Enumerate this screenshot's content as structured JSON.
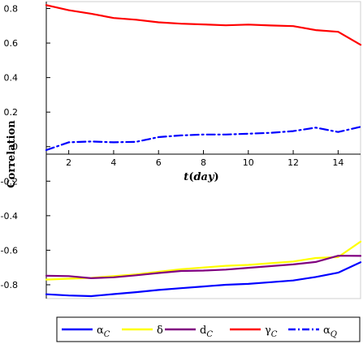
{
  "chart_data": {
    "type": "line",
    "xlabel": "t",
    "xlabel_unit": "day",
    "ylabel": "Correlation",
    "xlim": [
      1,
      15
    ],
    "ylim": [
      -0.88,
      0.84
    ],
    "x_ticks": [
      2,
      4,
      6,
      8,
      10,
      12,
      14
    ],
    "y_ticks": [
      0.8,
      0.6,
      0.4,
      0.2,
      0,
      -0.2,
      -0.4,
      -0.6,
      -0.8
    ],
    "x_tick_labels": [
      "2",
      "4",
      "6",
      "8",
      "10",
      "12",
      "14"
    ],
    "y_tick_labels": [
      "0.8",
      "0.6",
      "0.4",
      "0.2",
      "0",
      "-0.2",
      "-0.4",
      "-0.6",
      "-0.8"
    ],
    "grid": false,
    "legend_position": "bottom",
    "series": [
      {
        "name": "α",
        "sub": "C",
        "color": "#0000ff",
        "dash": "solid",
        "x": [
          1,
          2,
          3,
          4,
          5,
          6,
          7,
          8,
          9,
          10,
          11,
          12,
          13,
          14,
          15
        ],
        "values": [
          -0.855,
          -0.862,
          -0.866,
          -0.854,
          -0.843,
          -0.83,
          -0.82,
          -0.81,
          -0.8,
          -0.795,
          -0.785,
          -0.775,
          -0.755,
          -0.73,
          -0.67
        ]
      },
      {
        "name": "δ",
        "sub": "",
        "color": "#ffff00",
        "dash": "solid",
        "x": [
          1,
          2,
          3,
          4,
          5,
          6,
          7,
          8,
          9,
          10,
          11,
          12,
          13,
          14,
          15
        ],
        "values": [
          -0.77,
          -0.765,
          -0.76,
          -0.75,
          -0.74,
          -0.725,
          -0.71,
          -0.7,
          -0.69,
          -0.685,
          -0.675,
          -0.665,
          -0.645,
          -0.64,
          -0.55
        ]
      },
      {
        "name": "d",
        "sub": "C",
        "color": "#800080",
        "dash": "solid",
        "x": [
          1,
          2,
          3,
          4,
          5,
          6,
          7,
          8,
          9,
          10,
          11,
          12,
          13,
          14,
          15
        ],
        "values": [
          -0.748,
          -0.75,
          -0.762,
          -0.757,
          -0.745,
          -0.732,
          -0.72,
          -0.718,
          -0.712,
          -0.702,
          -0.692,
          -0.682,
          -0.668,
          -0.632,
          -0.633
        ]
      },
      {
        "name": "γ",
        "sub": "C",
        "color": "#ff0000",
        "dash": "solid",
        "x": [
          1,
          2,
          3,
          4,
          5,
          6,
          7,
          8,
          9,
          10,
          11,
          12,
          13,
          14,
          15
        ],
        "values": [
          0.82,
          0.79,
          0.77,
          0.745,
          0.735,
          0.72,
          0.712,
          0.708,
          0.703,
          0.707,
          0.702,
          0.698,
          0.675,
          0.665,
          0.59
        ]
      },
      {
        "name": "α",
        "sub": "Q",
        "color": "#0000ff",
        "dash": "dashdot",
        "x": [
          1,
          2,
          3,
          4,
          5,
          6,
          7,
          8,
          9,
          10,
          11,
          12,
          13,
          14,
          15
        ],
        "values": [
          -0.02,
          0.025,
          0.03,
          0.025,
          0.028,
          0.055,
          0.065,
          0.07,
          0.07,
          0.075,
          0.08,
          0.09,
          0.11,
          0.085,
          0.115
        ]
      }
    ]
  }
}
